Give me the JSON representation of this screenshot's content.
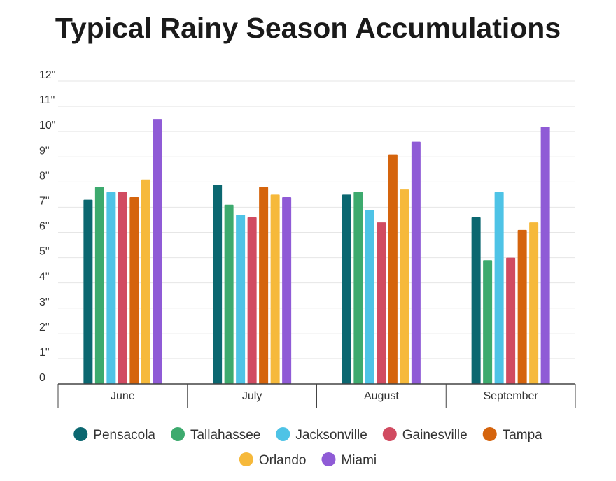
{
  "chart_data": {
    "type": "bar",
    "title": "Typical Rainy Season Accumulations",
    "xlabel": "",
    "ylabel": "",
    "ylim": [
      0,
      12
    ],
    "y_ticks": [
      "0",
      "1\"",
      "2\"",
      "3\"",
      "4\"",
      "5\"",
      "6\"",
      "7\"",
      "8\"",
      "9\"",
      "10\"",
      "11\"",
      "12\""
    ],
    "categories": [
      "June",
      "July",
      "August",
      "September"
    ],
    "grid": true,
    "legend_position": "bottom",
    "series": [
      {
        "name": "Pensacola",
        "color": "#0b6770",
        "values": [
          7.3,
          7.9,
          7.5,
          6.6
        ]
      },
      {
        "name": "Tallahassee",
        "color": "#3daa6e",
        "values": [
          7.8,
          7.1,
          7.6,
          4.9
        ]
      },
      {
        "name": "Jacksonville",
        "color": "#4ec3e6",
        "values": [
          7.6,
          6.7,
          6.9,
          7.6
        ]
      },
      {
        "name": "Gainesville",
        "color": "#d14b61",
        "values": [
          7.6,
          6.6,
          6.4,
          5.0
        ]
      },
      {
        "name": "Tampa",
        "color": "#d5640d",
        "values": [
          7.4,
          7.8,
          9.1,
          6.1
        ]
      },
      {
        "name": "Orlando",
        "color": "#f6b93b",
        "values": [
          8.1,
          7.5,
          7.7,
          6.4
        ]
      },
      {
        "name": "Miami",
        "color": "#8f5bd6",
        "values": [
          10.5,
          7.4,
          9.6,
          10.2
        ]
      }
    ]
  }
}
